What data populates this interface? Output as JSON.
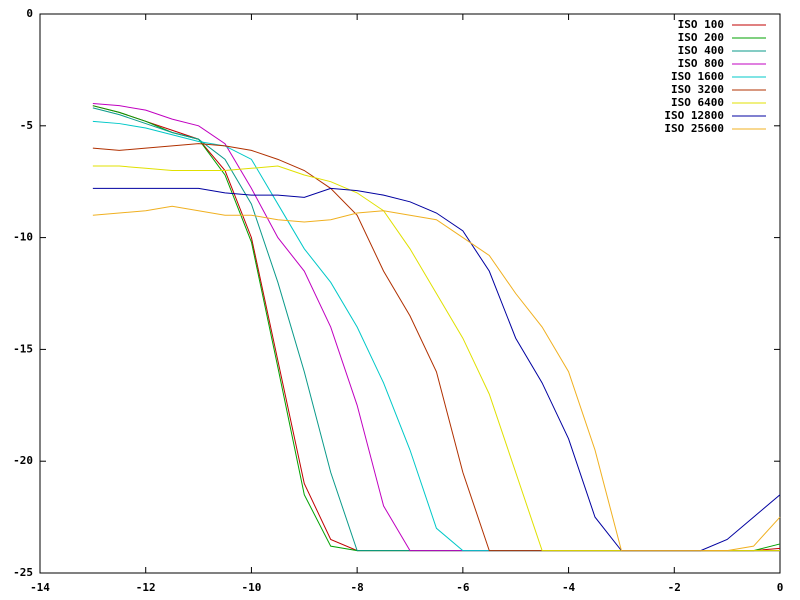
{
  "chart_data": {
    "type": "line",
    "x": [
      -13,
      -12.5,
      -12,
      -11.5,
      -11,
      -10.5,
      -10,
      -9.5,
      -9,
      -8.5,
      -8,
      -7.5,
      -7,
      -6.5,
      -6,
      -5.5,
      -5,
      -4.5,
      -4,
      -3.5,
      -3,
      -2.5,
      -2,
      -1.5,
      -1,
      -0.5,
      0
    ],
    "series": [
      {
        "name": "ISO 100",
        "color": "#c00000",
        "values": [
          -4.1,
          -4.4,
          -4.8,
          -5.2,
          -5.6,
          -7,
          -10,
          -15.5,
          -21,
          -23.5,
          -24,
          -24,
          -24,
          -24,
          -24,
          -24,
          -24,
          -24,
          -24,
          -24,
          -24,
          -24,
          -24,
          -24,
          -24,
          -24,
          -23.9
        ]
      },
      {
        "name": "ISO 200",
        "color": "#00a000",
        "values": [
          -4.1,
          -4.4,
          -4.8,
          -5.3,
          -5.6,
          -7.2,
          -10.2,
          -15.8,
          -21.5,
          -23.8,
          -24,
          -24,
          -24,
          -24,
          -24,
          -24,
          -24,
          -24,
          -24,
          -24,
          -24,
          -24,
          -24,
          -24,
          -24,
          -24,
          -23.7
        ]
      },
      {
        "name": "ISO 400",
        "color": "#0a9a8a",
        "values": [
          -4.2,
          -4.5,
          -4.9,
          -5.3,
          -5.6,
          -6.5,
          -8.5,
          -12,
          -16,
          -20.5,
          -24,
          -24,
          -24,
          -24,
          -24,
          -24,
          -24,
          -24,
          -24,
          -24,
          -24,
          -24,
          -24,
          -24,
          -24,
          -24,
          -24
        ]
      },
      {
        "name": "ISO 800",
        "color": "#c000c0",
        "values": [
          -4,
          -4.1,
          -4.3,
          -4.7,
          -5,
          -5.8,
          -7.8,
          -10,
          -11.5,
          -14,
          -17.5,
          -22,
          -24,
          -24,
          -24,
          -24,
          -24,
          -24,
          -24,
          -24,
          -24,
          -24,
          -24,
          -24,
          -24,
          -24,
          -24
        ]
      },
      {
        "name": "ISO 1600",
        "color": "#00c8c8",
        "values": [
          -4.8,
          -4.9,
          -5.1,
          -5.4,
          -5.7,
          -5.9,
          -6.5,
          -8.5,
          -10.5,
          -12,
          -14,
          -16.5,
          -19.5,
          -23,
          -24,
          -24,
          -24,
          -24,
          -24,
          -24,
          -24,
          -24,
          -24,
          -24,
          -24,
          -24,
          -24
        ]
      },
      {
        "name": "ISO 3200",
        "color": "#b03000",
        "values": [
          -6,
          -6.1,
          -6,
          -5.9,
          -5.8,
          -5.9,
          -6.1,
          -6.5,
          -7,
          -7.8,
          -9,
          -11.5,
          -13.5,
          -16,
          -20.5,
          -24,
          -24,
          -24,
          -24,
          -24,
          -24,
          -24,
          -24,
          -24,
          -24,
          -24,
          -24
        ]
      },
      {
        "name": "ISO 6400",
        "color": "#e0e000",
        "values": [
          -6.8,
          -6.8,
          -6.9,
          -7,
          -7,
          -7,
          -6.9,
          -6.8,
          -7.2,
          -7.5,
          -8,
          -8.8,
          -10.5,
          -12.5,
          -14.5,
          -17,
          -20.5,
          -24,
          -24,
          -24,
          -24,
          -24,
          -24,
          -24,
          -24,
          -24,
          -24
        ]
      },
      {
        "name": "ISO 12800",
        "color": "#0000a0",
        "values": [
          -7.8,
          -7.8,
          -7.8,
          -7.8,
          -7.8,
          -8,
          -8.1,
          -8.1,
          -8.2,
          -7.8,
          -7.9,
          -8.1,
          -8.4,
          -8.9,
          -9.7,
          -11.5,
          -14.5,
          -16.5,
          -19,
          -22.5,
          -24,
          -24,
          -24,
          -24,
          -23.5,
          -22.5,
          -21.5
        ]
      },
      {
        "name": "ISO 25600",
        "color": "#f0b020",
        "values": [
          -9,
          -8.9,
          -8.8,
          -8.6,
          -8.8,
          -9,
          -9,
          -9.2,
          -9.3,
          -9.2,
          -8.9,
          -8.8,
          -9,
          -9.2,
          -10,
          -10.8,
          -12.5,
          -14,
          -16,
          -19.5,
          -24,
          -24,
          -24,
          -24,
          -24,
          -23.8,
          -22.5
        ]
      }
    ],
    "xlim": [
      -14,
      0
    ],
    "xticks": [
      -14,
      -12,
      -10,
      -8,
      -6,
      -4,
      -2,
      0
    ],
    "ylim": [
      -25,
      0
    ],
    "yticks": [
      0,
      -5,
      -10,
      -15,
      -20,
      -25
    ],
    "legend": "top-right"
  }
}
